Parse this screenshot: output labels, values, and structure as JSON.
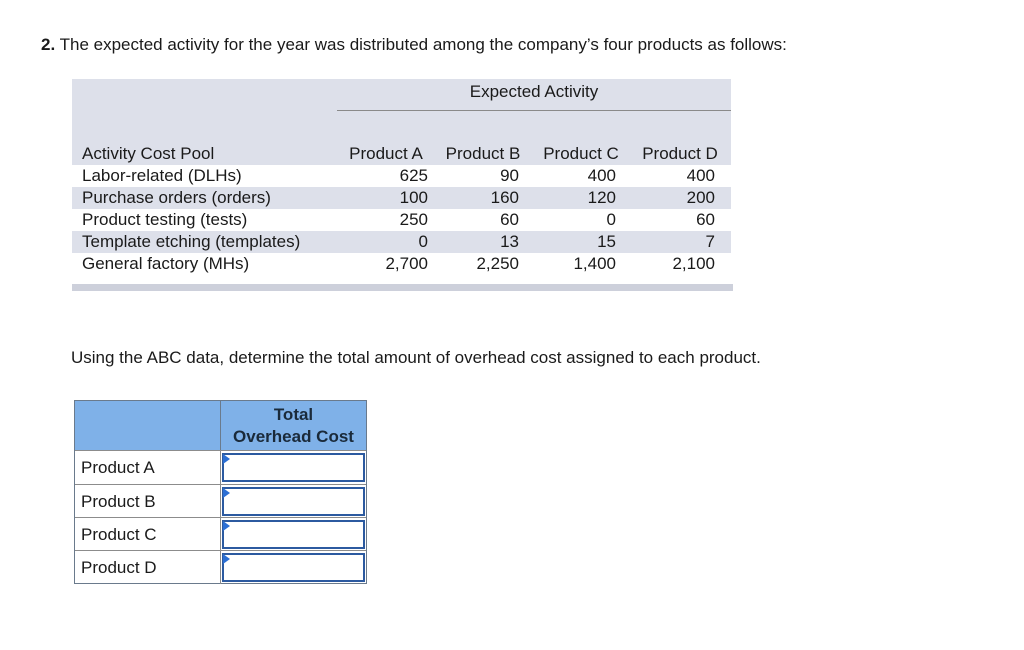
{
  "question": {
    "number": "2.",
    "text": "The expected activity for the year was distributed among the company’s four products as follows:"
  },
  "activity_table": {
    "group_header": "Expected Activity",
    "pool_header": "Activity Cost Pool",
    "products": [
      "Product A",
      "Product B",
      "Product C",
      "Product D"
    ],
    "rows": [
      {
        "pool": "Labor-related (DLHs)",
        "values": [
          "625",
          "90",
          "400",
          "400"
        ]
      },
      {
        "pool": "Purchase orders (orders)",
        "values": [
          "100",
          "160",
          "120",
          "200"
        ]
      },
      {
        "pool": "Product testing (tests)",
        "values": [
          "250",
          "60",
          "0",
          "60"
        ]
      },
      {
        "pool": "Template etching (templates)",
        "values": [
          "0",
          "13",
          "15",
          "7"
        ]
      },
      {
        "pool": "General factory (MHs)",
        "values": [
          "2,700",
          "2,250",
          "1,400",
          "2,100"
        ]
      }
    ]
  },
  "instruction": "Using the ABC data, determine the total amount of overhead cost assigned to each product.",
  "answer_table": {
    "header_line1": "Total",
    "header_line2": "Overhead Cost",
    "rows": [
      {
        "label": "Product A",
        "value": ""
      },
      {
        "label": "Product B",
        "value": ""
      },
      {
        "label": "Product C",
        "value": ""
      },
      {
        "label": "Product D",
        "value": ""
      }
    ]
  },
  "colors": {
    "band": "#dde0ea",
    "answer_header": "#7fb1e8",
    "input_border": "#2c5aa0"
  }
}
